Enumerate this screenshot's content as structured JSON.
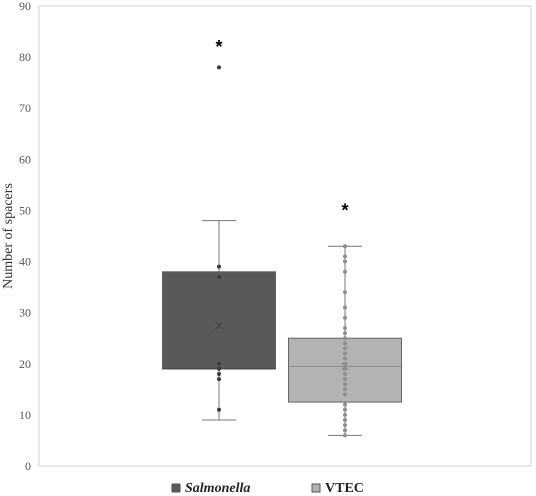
{
  "chart_data": {
    "type": "box",
    "title": "",
    "xlabel": "",
    "ylabel": "Number of spacers",
    "ylim": [
      0,
      90
    ],
    "yticks": [
      0,
      10,
      20,
      30,
      40,
      50,
      60,
      70,
      80,
      90
    ],
    "grid": false,
    "legend_position": "bottom",
    "series": [
      {
        "name": "Salmonella",
        "italic": true,
        "color": "#595959",
        "min": 9,
        "q1": 19,
        "median": 19,
        "q3": 38,
        "max": 48,
        "mean": 27.5,
        "points": [
          11,
          17,
          18,
          19,
          20,
          37,
          39,
          78
        ],
        "annotation": "*"
      },
      {
        "name": "VTEC",
        "italic": false,
        "color": "#b3b3b3",
        "min": 6,
        "q1": 12.5,
        "median": 19.5,
        "q3": 25,
        "max": 43,
        "mean": 19.5,
        "points": [
          6,
          7,
          8,
          9,
          10,
          11,
          12,
          14,
          15,
          16,
          17,
          18,
          19,
          20,
          21,
          22,
          23,
          24,
          25,
          26,
          27,
          29,
          31,
          34,
          38,
          40,
          41,
          43
        ],
        "annotation": "*"
      }
    ]
  }
}
